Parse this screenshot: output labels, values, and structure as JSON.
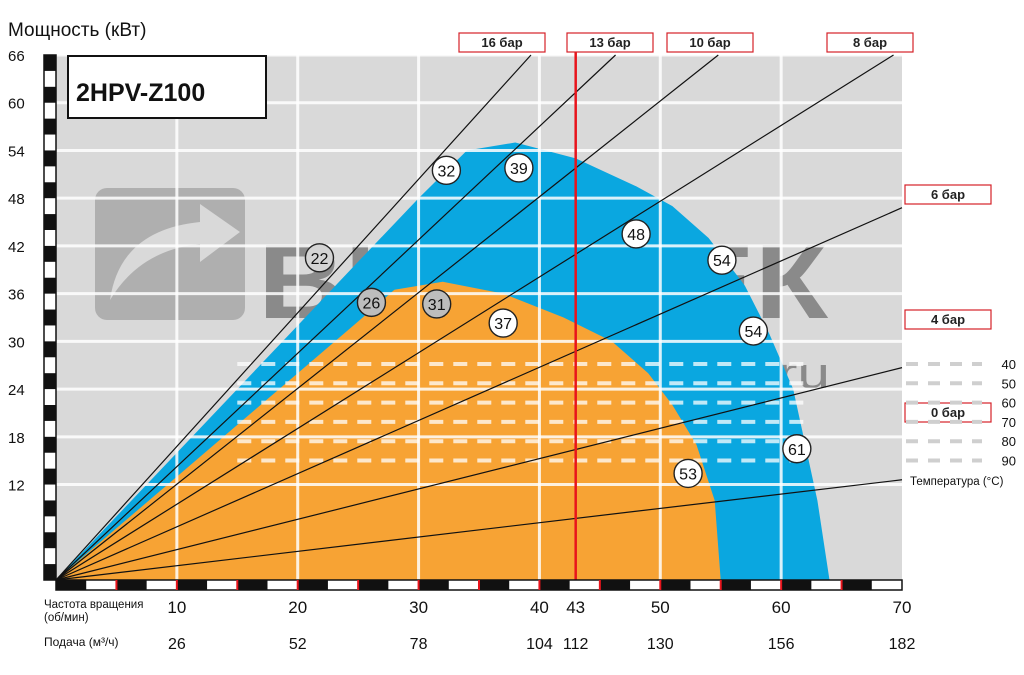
{
  "chart_data": {
    "type": "area",
    "title": "2HPV-Z100",
    "ylabel": "Мощность (кВт)",
    "xlabel_speed": "Частота вращения (об/мин)",
    "xlabel_flow": "Подача (м³/ч)",
    "ylim": [
      0,
      66
    ],
    "xlim": [
      0,
      70
    ],
    "grid": true,
    "y_ticks": [
      12,
      18,
      24,
      30,
      36,
      42,
      48,
      54,
      60,
      66
    ],
    "x_ticks_speed": [
      10,
      20,
      30,
      40,
      43,
      50,
      60,
      70
    ],
    "x_ticks_flow": [
      {
        "at": 10,
        "label": "26"
      },
      {
        "at": 20,
        "label": "52"
      },
      {
        "at": 30,
        "label": "78"
      },
      {
        "at": 40,
        "label": "104"
      },
      {
        "at": 43,
        "label": "112"
      },
      {
        "at": 50,
        "label": "130"
      },
      {
        "at": 60,
        "label": "156"
      },
      {
        "at": 70,
        "label": "182"
      }
    ],
    "envelopes": [
      {
        "color": "#0aa7e0",
        "points": [
          [
            0,
            0
          ],
          [
            5,
            8
          ],
          [
            10,
            16
          ],
          [
            15,
            24
          ],
          [
            20,
            32
          ],
          [
            25,
            40
          ],
          [
            30,
            48
          ],
          [
            34,
            54
          ],
          [
            38,
            55
          ],
          [
            43,
            53
          ],
          [
            48,
            49.5
          ],
          [
            51,
            47
          ],
          [
            54,
            43
          ],
          [
            57,
            37
          ],
          [
            59,
            31
          ],
          [
            61,
            24
          ],
          [
            63,
            10
          ],
          [
            64,
            0
          ]
        ]
      },
      {
        "color": "#f7a334",
        "points": [
          [
            0,
            0
          ],
          [
            5,
            6.5
          ],
          [
            10,
            13
          ],
          [
            15,
            19.5
          ],
          [
            20,
            26
          ],
          [
            25,
            32.5
          ],
          [
            28,
            36.5
          ],
          [
            32,
            37.5
          ],
          [
            37,
            36
          ],
          [
            42,
            33
          ],
          [
            46,
            30
          ],
          [
            49,
            26
          ],
          [
            51,
            22
          ],
          [
            53,
            17
          ],
          [
            54.5,
            10
          ],
          [
            55,
            0
          ]
        ]
      }
    ],
    "pressure_lines": [
      {
        "label": "16 бар",
        "end": [
          39.3,
          66
        ]
      },
      {
        "label": "13 бар",
        "end": [
          46.3,
          66
        ]
      },
      {
        "label": "10 бар",
        "end": [
          54.8,
          66
        ]
      },
      {
        "label": "8 бар",
        "end": [
          69.3,
          66
        ]
      },
      {
        "label": "6 бар",
        "end": [
          70,
          46.8
        ]
      },
      {
        "label": "4 бар",
        "end": [
          70,
          26.7
        ]
      },
      {
        "label": "0 бар",
        "end": [
          70,
          12.6
        ]
      }
    ],
    "speed_marker": 43,
    "temperature_legend": {
      "title": "Температура (°C)",
      "values": [
        "40",
        "50",
        "60",
        "70",
        "80",
        "90"
      ]
    },
    "efficiency_labels": [
      {
        "value": "22",
        "x": 21.8,
        "y": 40.5,
        "fill": "#d4d4d4"
      },
      {
        "value": "32",
        "x": 32.3,
        "y": 51.5,
        "fill": "#ffffff"
      },
      {
        "value": "39",
        "x": 38.3,
        "y": 51.8,
        "fill": "#ffffff"
      },
      {
        "value": "48",
        "x": 48.0,
        "y": 43.5,
        "fill": "#ffffff"
      },
      {
        "value": "54",
        "x": 55.1,
        "y": 40.2,
        "fill": "#ffffff"
      },
      {
        "value": "54",
        "x": 57.7,
        "y": 31.3,
        "fill": "#ffffff"
      },
      {
        "value": "26",
        "x": 26.1,
        "y": 34.9,
        "fill": "#bdbdbd"
      },
      {
        "value": "31",
        "x": 31.5,
        "y": 34.7,
        "fill": "#bdbdbd"
      },
      {
        "value": "37",
        "x": 37.0,
        "y": 32.3,
        "fill": "#ffffff"
      },
      {
        "value": "53",
        "x": 52.3,
        "y": 13.4,
        "fill": "#ffffff"
      },
      {
        "value": "61",
        "x": 61.3,
        "y": 16.5,
        "fill": "#ffffff"
      }
    ],
    "watermark": {
      "brand": "ВИЛИТЕК",
      "site": "www.vilitek.ru"
    }
  }
}
